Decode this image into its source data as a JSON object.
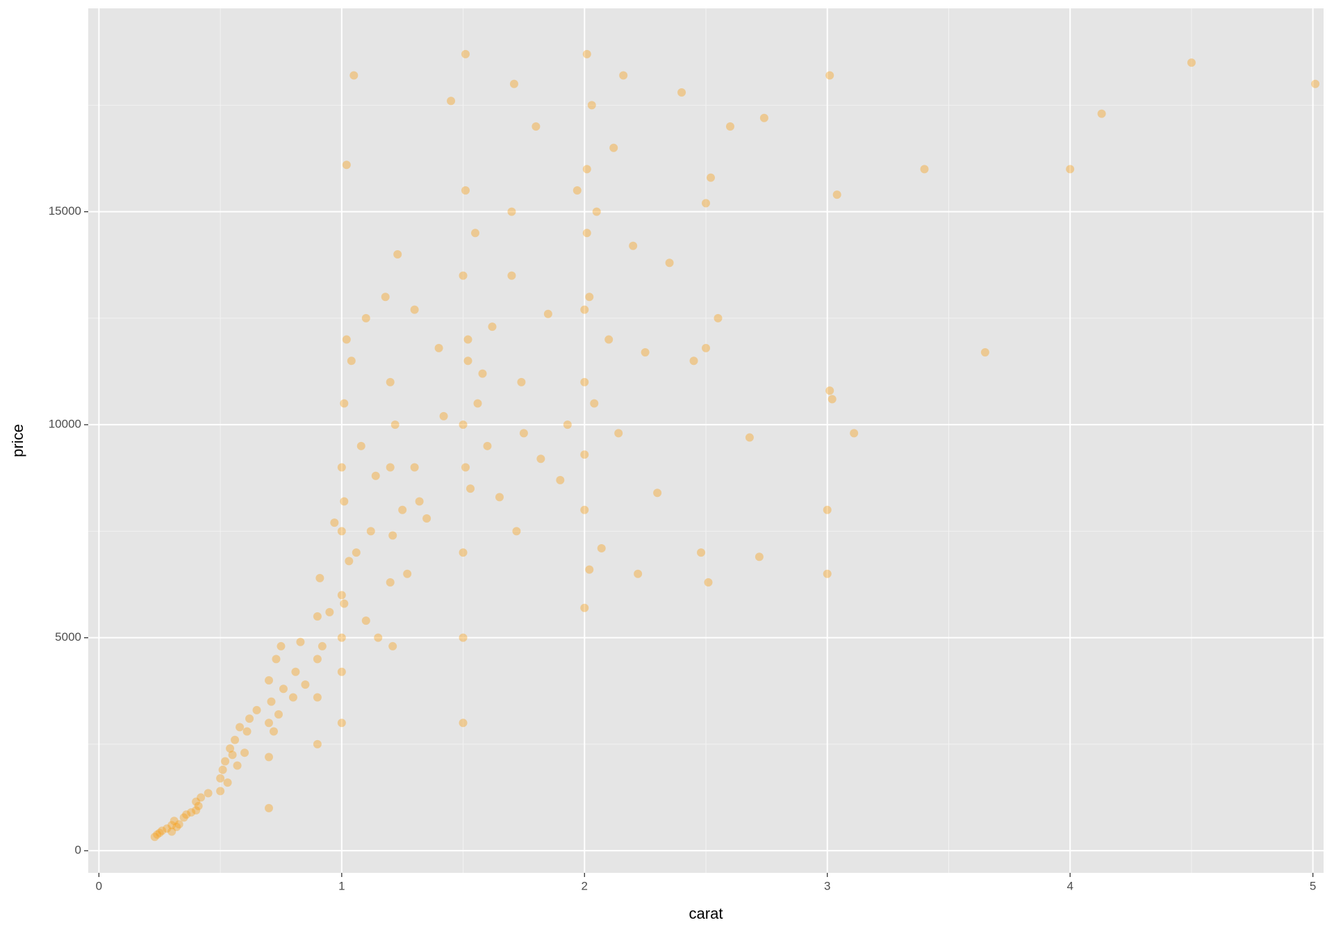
{
  "chart_data": {
    "type": "scatter",
    "x_label": "carat",
    "y_label": "price",
    "color": "#F8A01A",
    "opacity": 0.4,
    "grid": true,
    "xlim": [
      -0.044,
      5.044
    ],
    "ylim": [
      -519,
      19774
    ],
    "xticks": [
      0,
      1,
      2,
      3,
      4,
      5
    ],
    "yticks": [
      0,
      5000,
      10000,
      15000
    ],
    "xminor": [
      0.5,
      1.5,
      2.5,
      3.5,
      4.5
    ],
    "yminor": [
      2500,
      7500,
      12500,
      17500
    ],
    "x": [
      0.23,
      0.24,
      0.25,
      0.26,
      0.28,
      0.3,
      0.3,
      0.31,
      0.32,
      0.33,
      0.35,
      0.36,
      0.38,
      0.4,
      0.4,
      0.41,
      0.42,
      0.45,
      0.5,
      0.5,
      0.51,
      0.52,
      0.53,
      0.54,
      0.55,
      0.56,
      0.57,
      0.58,
      0.6,
      0.61,
      0.62,
      0.65,
      0.7,
      0.7,
      0.7,
      0.7,
      0.71,
      0.72,
      0.73,
      0.74,
      0.75,
      0.76,
      0.8,
      0.81,
      0.83,
      0.85,
      0.9,
      0.9,
      0.9,
      0.9,
      0.91,
      0.92,
      0.95,
      0.97,
      1.0,
      1.0,
      1.0,
      1.0,
      1.0,
      1.0,
      1.01,
      1.01,
      1.01,
      1.02,
      1.02,
      1.03,
      1.04,
      1.05,
      1.06,
      1.08,
      1.1,
      1.1,
      1.12,
      1.14,
      1.15,
      1.18,
      1.2,
      1.2,
      1.2,
      1.21,
      1.21,
      1.22,
      1.23,
      1.25,
      1.27,
      1.3,
      1.3,
      1.32,
      1.35,
      1.4,
      1.42,
      1.45,
      1.5,
      1.5,
      1.5,
      1.5,
      1.5,
      1.51,
      1.51,
      1.51,
      1.52,
      1.52,
      1.53,
      1.55,
      1.56,
      1.58,
      1.6,
      1.62,
      1.65,
      1.7,
      1.7,
      1.71,
      1.72,
      1.74,
      1.75,
      1.8,
      1.82,
      1.85,
      1.9,
      1.93,
      1.97,
      2.0,
      2.0,
      2.0,
      2.0,
      2.0,
      2.01,
      2.01,
      2.01,
      2.02,
      2.02,
      2.03,
      2.04,
      2.05,
      2.07,
      2.1,
      2.12,
      2.14,
      2.16,
      2.2,
      2.22,
      2.25,
      2.3,
      2.35,
      2.4,
      2.45,
      2.48,
      2.5,
      2.5,
      2.51,
      2.52,
      2.55,
      2.6,
      2.68,
      2.72,
      2.74,
      3.0,
      3.0,
      3.01,
      3.01,
      3.02,
      3.04,
      3.11,
      3.4,
      3.65,
      4.0,
      4.13,
      4.5,
      5.01
    ],
    "y": [
      326,
      380,
      420,
      470,
      520,
      600,
      450,
      700,
      560,
      620,
      780,
      850,
      900,
      950,
      1150,
      1050,
      1250,
      1350,
      1400,
      1700,
      1900,
      2100,
      1600,
      2400,
      2250,
      2600,
      2000,
      2900,
      2300,
      2800,
      3100,
      3300,
      1000,
      2200,
      3000,
      4000,
      3500,
      2800,
      4500,
      3200,
      4800,
      3800,
      3600,
      4200,
      4900,
      3900,
      2500,
      3600,
      4500,
      5500,
      6400,
      4800,
      5600,
      7700,
      3000,
      4200,
      5000,
      6000,
      7500,
      9000,
      10500,
      8200,
      5800,
      12000,
      16100,
      6800,
      11500,
      18200,
      7000,
      9500,
      5400,
      12500,
      7500,
      8800,
      5000,
      13000,
      6300,
      9000,
      11000,
      4800,
      7400,
      10000,
      14000,
      8000,
      6500,
      9000,
      12700,
      8200,
      7800,
      11800,
      10200,
      17600,
      3000,
      5000,
      7000,
      10000,
      13500,
      15500,
      9000,
      18700,
      11500,
      12000,
      8500,
      14500,
      10500,
      11200,
      9500,
      12300,
      8300,
      13500,
      15000,
      18000,
      7500,
      11000,
      9800,
      17000,
      9200,
      12600,
      8700,
      10000,
      15500,
      9300,
      12700,
      5700,
      8000,
      11000,
      14500,
      18700,
      16000,
      6600,
      13000,
      17500,
      10500,
      15000,
      7100,
      12000,
      16500,
      9800,
      18200,
      14200,
      6500,
      11700,
      8400,
      13800,
      17800,
      11500,
      7000,
      15200,
      11800,
      6300,
      15800,
      12500,
      17000,
      9700,
      6900,
      17200,
      6500,
      8000,
      10800,
      18200,
      10600,
      15400,
      9800,
      16000,
      11700,
      16000,
      17300,
      18500,
      18000
    ]
  }
}
